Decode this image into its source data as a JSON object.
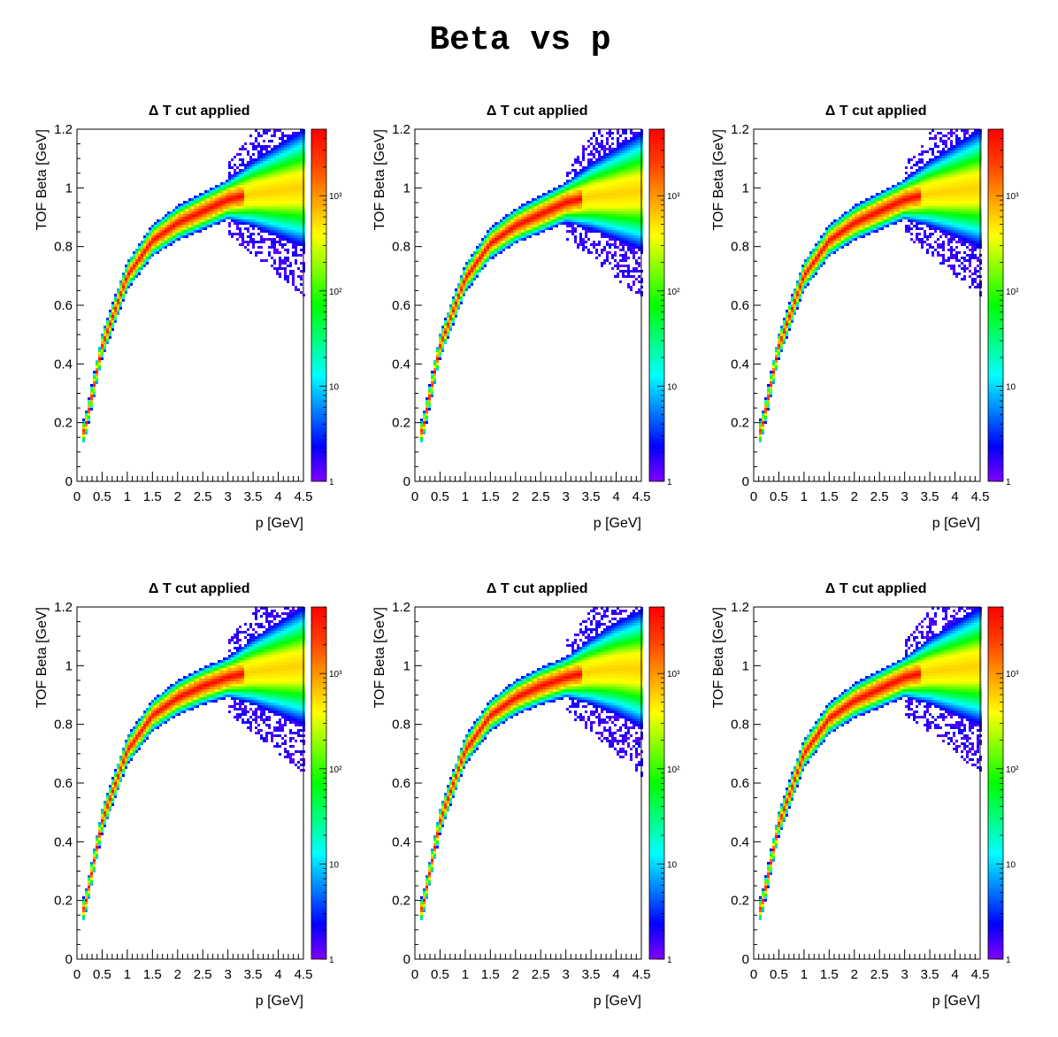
{
  "page": {
    "title": "Beta vs p"
  },
  "colors": {
    "palette": [
      "#8000ff",
      "#0000ff",
      "#0080ff",
      "#00ffff",
      "#00ff80",
      "#00ff00",
      "#80ff00",
      "#ffff00",
      "#ffa000",
      "#ff4000",
      "#ff0000"
    ]
  },
  "chart_data": [
    {
      "type": "heatmap",
      "title": "Δ T cut applied",
      "xlabel": "p  [GeV]",
      "ylabel": "TOF Beta  [GeV]",
      "xlim": [
        0,
        4.5
      ],
      "ylim": [
        0,
        1.2
      ],
      "xticks": [
        "0",
        "0.5",
        "1",
        "1.5",
        "2",
        "2.5",
        "3",
        "3.5",
        "4",
        "4.5"
      ],
      "yticks": [
        "0",
        "0.2",
        "0.4",
        "0.6",
        "0.8",
        "1",
        "1.2"
      ],
      "zscale": "log",
      "zlim": [
        1,
        5000
      ],
      "zticks": [
        "1",
        "10",
        "10²",
        "10³"
      ],
      "band": {
        "p": [
          0.15,
          0.5,
          1.0,
          1.5,
          2.0,
          2.5,
          3.0,
          3.5,
          4.0,
          4.5
        ],
        "beta": [
          0.17,
          0.46,
          0.7,
          0.82,
          0.88,
          0.92,
          0.96,
          0.98,
          0.99,
          1.0
        ]
      }
    },
    {
      "type": "heatmap",
      "title": "Δ T cut applied",
      "xlabel": "p  [GeV]",
      "ylabel": "TOF Beta  [GeV]",
      "xlim": [
        0,
        4.5
      ],
      "ylim": [
        0,
        1.2
      ],
      "xticks": [
        "0",
        "0.5",
        "1",
        "1.5",
        "2",
        "2.5",
        "3",
        "3.5",
        "4",
        "4.5"
      ],
      "yticks": [
        "0",
        "0.2",
        "0.4",
        "0.6",
        "0.8",
        "1",
        "1.2"
      ],
      "zscale": "log",
      "zlim": [
        1,
        5000
      ],
      "zticks": [
        "1",
        "10",
        "10²",
        "10³"
      ],
      "band": {
        "p": [
          0.15,
          0.5,
          1.0,
          1.5,
          2.0,
          2.5,
          3.0,
          3.5,
          4.0,
          4.5
        ],
        "beta": [
          0.17,
          0.46,
          0.69,
          0.81,
          0.87,
          0.91,
          0.95,
          0.97,
          0.98,
          0.99
        ]
      }
    },
    {
      "type": "heatmap",
      "title": "Δ T cut applied",
      "xlabel": "p  [GeV]",
      "ylabel": "TOF Beta  [GeV]",
      "xlim": [
        0,
        4.5
      ],
      "ylim": [
        0,
        1.2
      ],
      "xticks": [
        "0",
        "0.5",
        "1",
        "1.5",
        "2",
        "2.5",
        "3",
        "3.5",
        "4",
        "4.5"
      ],
      "yticks": [
        "0",
        "0.2",
        "0.4",
        "0.6",
        "0.8",
        "1",
        "1.2"
      ],
      "zscale": "log",
      "zlim": [
        1,
        5000
      ],
      "zticks": [
        "1",
        "10",
        "10²",
        "10³"
      ],
      "band": {
        "p": [
          0.15,
          0.5,
          1.0,
          1.5,
          2.0,
          2.5,
          3.0,
          3.5,
          4.0,
          4.5
        ],
        "beta": [
          0.17,
          0.46,
          0.7,
          0.82,
          0.88,
          0.92,
          0.96,
          0.98,
          0.99,
          1.0
        ]
      }
    },
    {
      "type": "heatmap",
      "title": "Δ T cut applied",
      "xlabel": "p  [GeV]",
      "ylabel": "TOF Beta  [GeV]",
      "xlim": [
        0,
        4.5
      ],
      "ylim": [
        0,
        1.2
      ],
      "xticks": [
        "0",
        "0.5",
        "1",
        "1.5",
        "2",
        "2.5",
        "3",
        "3.5",
        "4",
        "4.5"
      ],
      "yticks": [
        "0",
        "0.2",
        "0.4",
        "0.6",
        "0.8",
        "1",
        "1.2"
      ],
      "zscale": "log",
      "zlim": [
        1,
        5000
      ],
      "zticks": [
        "1",
        "10",
        "10²",
        "10³"
      ],
      "band": {
        "p": [
          0.15,
          0.5,
          1.0,
          1.5,
          2.0,
          2.5,
          3.0,
          3.5,
          4.0,
          4.5
        ],
        "beta": [
          0.17,
          0.47,
          0.71,
          0.83,
          0.89,
          0.93,
          0.96,
          0.98,
          0.99,
          1.0
        ]
      }
    },
    {
      "type": "heatmap",
      "title": "Δ T cut applied",
      "xlabel": "p  [GeV]",
      "ylabel": "TOF Beta  [GeV]",
      "xlim": [
        0,
        4.5
      ],
      "ylim": [
        0,
        1.2
      ],
      "xticks": [
        "0",
        "0.5",
        "1",
        "1.5",
        "2",
        "2.5",
        "3",
        "3.5",
        "4",
        "4.5"
      ],
      "yticks": [
        "0",
        "0.2",
        "0.4",
        "0.6",
        "0.8",
        "1",
        "1.2"
      ],
      "zscale": "log",
      "zlim": [
        1,
        5000
      ],
      "zticks": [
        "1",
        "10",
        "10²",
        "10³"
      ],
      "band": {
        "p": [
          0.15,
          0.5,
          1.0,
          1.5,
          2.0,
          2.5,
          3.0,
          3.5,
          4.0,
          4.5
        ],
        "beta": [
          0.17,
          0.47,
          0.71,
          0.83,
          0.89,
          0.93,
          0.96,
          0.98,
          0.99,
          0.99
        ]
      }
    },
    {
      "type": "heatmap",
      "title": "Δ T cut applied",
      "xlabel": "p  [GeV]",
      "ylabel": "TOF Beta  [GeV]",
      "xlim": [
        0,
        4.5
      ],
      "ylim": [
        0,
        1.2
      ],
      "xticks": [
        "0",
        "0.5",
        "1",
        "1.5",
        "2",
        "2.5",
        "3",
        "3.5",
        "4",
        "4.5"
      ],
      "yticks": [
        "0",
        "0.2",
        "0.4",
        "0.6",
        "0.8",
        "1",
        "1.2"
      ],
      "zscale": "log",
      "zlim": [
        1,
        5000
      ],
      "zticks": [
        "1",
        "10",
        "10²",
        "10³"
      ],
      "band": {
        "p": [
          0.15,
          0.5,
          1.0,
          1.5,
          2.0,
          2.5,
          3.0,
          3.5,
          4.0,
          4.5
        ],
        "beta": [
          0.17,
          0.46,
          0.7,
          0.82,
          0.88,
          0.92,
          0.96,
          0.98,
          0.99,
          1.0
        ]
      }
    }
  ]
}
